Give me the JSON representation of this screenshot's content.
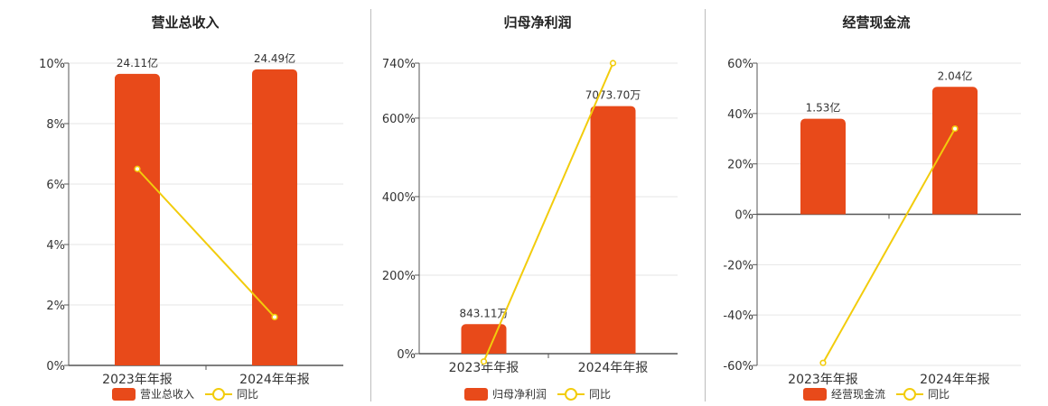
{
  "colors": {
    "bar": "#E84A1A",
    "line": "#F2CC0C",
    "grid": "#E6E6E6",
    "axis": "#555555"
  },
  "chart_data": [
    {
      "type": "bar",
      "title": "营业总收入",
      "categories": [
        "2023年年报",
        "2024年年报"
      ],
      "bar_series": {
        "name": "营业总收入",
        "values": [
          24.11,
          24.49
        ],
        "labels": [
          "24.11亿",
          "24.49亿"
        ],
        "unit": "亿",
        "axis_max": 25.0
      },
      "line_series": {
        "name": "同比",
        "values": [
          6.5,
          1.6
        ],
        "unit": "%"
      },
      "yaxis": {
        "ticks": [
          "0%",
          "2%",
          "4%",
          "6%",
          "8%",
          "10%"
        ],
        "min": 0,
        "max": 10
      },
      "grid": true,
      "legend": "bottom"
    },
    {
      "type": "bar",
      "title": "归母净利润",
      "categories": [
        "2023年年报",
        "2024年年报"
      ],
      "bar_series": {
        "name": "归母净利润",
        "values": [
          843.11,
          7073.7
        ],
        "labels": [
          "843.11万",
          "7073.70万"
        ],
        "unit": "万",
        "axis_max": 8300
      },
      "line_series": {
        "name": "同比",
        "values": [
          -20,
          740
        ],
        "unit": "%"
      },
      "yaxis": {
        "ticks": [
          "0%",
          "200%",
          "400%",
          "600%",
          "740%"
        ],
        "min": 0,
        "max": 740,
        "tick_values": [
          0,
          200,
          400,
          600,
          740
        ]
      },
      "grid": true,
      "legend": "bottom"
    },
    {
      "type": "bar",
      "title": "经营现金流",
      "categories": [
        "2023年年报",
        "2024年年报"
      ],
      "bar_series": {
        "name": "经营现金流",
        "values": [
          1.53,
          2.04
        ],
        "labels": [
          "1.53亿",
          "2.04亿"
        ],
        "unit": "亿",
        "axis_max": 2.42
      },
      "line_series": {
        "name": "同比",
        "values": [
          -59,
          34
        ],
        "unit": "%"
      },
      "yaxis": {
        "ticks": [
          "-60%",
          "-40%",
          "-20%",
          "0%",
          "20%",
          "40%",
          "60%"
        ],
        "min": -60,
        "max": 60
      },
      "grid": true,
      "legend": "bottom"
    }
  ]
}
